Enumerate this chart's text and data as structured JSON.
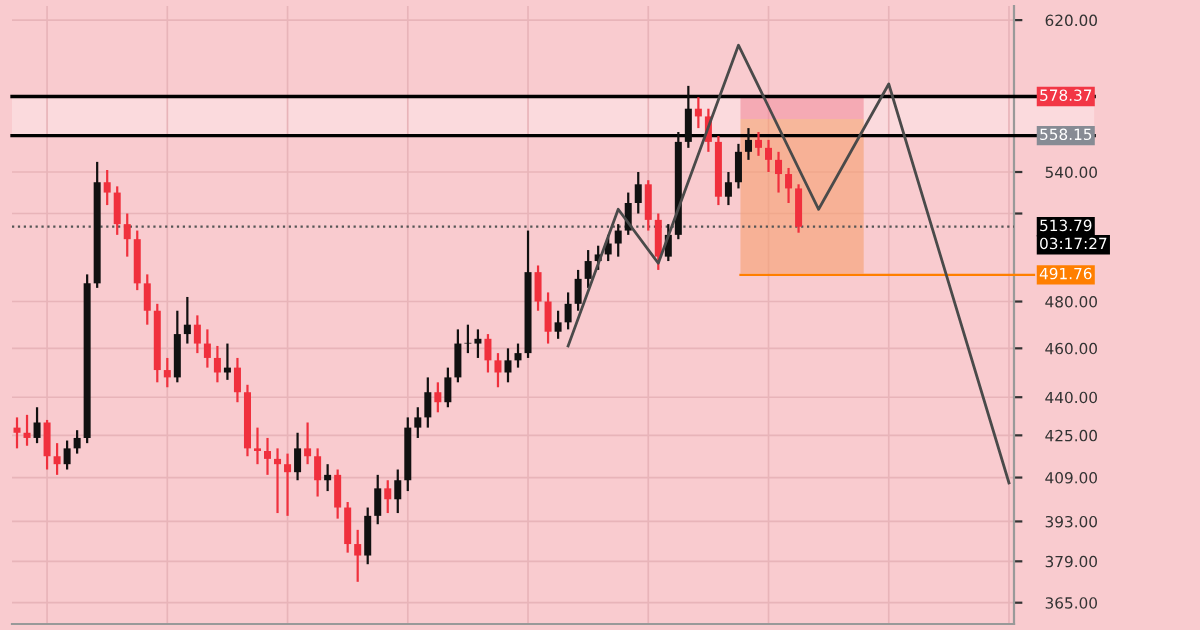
{
  "chart_data": {
    "type": "candlestick",
    "categories": [
      null,
      null,
      null,
      null,
      null,
      null,
      null,
      null,
      null,
      null,
      null,
      null,
      null,
      null,
      null,
      null,
      null,
      null,
      null,
      null,
      null,
      null,
      null,
      null,
      null,
      null,
      null,
      null,
      null,
      null,
      null,
      null,
      null,
      null,
      null,
      null,
      null,
      null,
      null,
      null,
      null,
      null,
      null,
      null,
      null,
      null,
      null,
      null,
      null,
      null,
      null,
      null,
      null,
      null,
      null,
      null,
      null,
      null,
      null,
      null,
      null,
      null,
      null,
      null,
      null,
      null,
      null,
      null,
      null,
      null,
      null,
      null,
      null,
      null,
      null,
      null,
      null,
      null,
      null,
      null,
      null,
      null,
      null,
      null,
      null,
      null,
      null,
      null,
      null,
      null,
      null,
      null,
      null,
      null,
      null,
      null,
      null,
      null,
      null,
      null
    ],
    "ohlc": [
      [
        428,
        432,
        420,
        426
      ],
      [
        426,
        433,
        421,
        424
      ],
      [
        424,
        436,
        422,
        430
      ],
      [
        430,
        431,
        412,
        417
      ],
      [
        417,
        422,
        410,
        414
      ],
      [
        414,
        423,
        412,
        420
      ],
      [
        420,
        427,
        418,
        424
      ],
      [
        424,
        492,
        422,
        488
      ],
      [
        488,
        545,
        486,
        535
      ],
      [
        535,
        541,
        524,
        530
      ],
      [
        530,
        533,
        510,
        515
      ],
      [
        515,
        520,
        500,
        508
      ],
      [
        508,
        512,
        485,
        488
      ],
      [
        488,
        492,
        470,
        476
      ],
      [
        476,
        479,
        446,
        451
      ],
      [
        451,
        456,
        444,
        448
      ],
      [
        448,
        476,
        446,
        466
      ],
      [
        466,
        482,
        462,
        470
      ],
      [
        470,
        474,
        458,
        462
      ],
      [
        462,
        468,
        452,
        456
      ],
      [
        456,
        461,
        446,
        450
      ],
      [
        450,
        462,
        447,
        452
      ],
      [
        452,
        456,
        438,
        442
      ],
      [
        442,
        445,
        417,
        420
      ],
      [
        420,
        428,
        414,
        419
      ],
      [
        419,
        424,
        410,
        416
      ],
      [
        416,
        420,
        396,
        414
      ],
      [
        414,
        418,
        395,
        411
      ],
      [
        411,
        426,
        408,
        420
      ],
      [
        420,
        430,
        414,
        417
      ],
      [
        417,
        420,
        402,
        408
      ],
      [
        408,
        414,
        404,
        410
      ],
      [
        410,
        412,
        394,
        398
      ],
      [
        398,
        400,
        382,
        385
      ],
      [
        385,
        390,
        372,
        381
      ],
      [
        381,
        398,
        378,
        395
      ],
      [
        395,
        410,
        392,
        405
      ],
      [
        405,
        408,
        396,
        401
      ],
      [
        401,
        412,
        396,
        408
      ],
      [
        408,
        432,
        404,
        428
      ],
      [
        428,
        436,
        424,
        432
      ],
      [
        432,
        448,
        428,
        442
      ],
      [
        442,
        446,
        434,
        438
      ],
      [
        438,
        452,
        436,
        448
      ],
      [
        448,
        468,
        446,
        462
      ],
      [
        462,
        470,
        458,
        462
      ],
      [
        462,
        468,
        456,
        464
      ],
      [
        464,
        466,
        450,
        455
      ],
      [
        455,
        458,
        444,
        450
      ],
      [
        450,
        460,
        446,
        455
      ],
      [
        455,
        462,
        452,
        458
      ],
      [
        458,
        512,
        456,
        493
      ],
      [
        493,
        496,
        476,
        480
      ],
      [
        480,
        484,
        462,
        467
      ],
      [
        467,
        476,
        464,
        471
      ],
      [
        471,
        484,
        468,
        479
      ],
      [
        479,
        494,
        476,
        490
      ],
      [
        490,
        503,
        486,
        498
      ],
      [
        498,
        505,
        494,
        501
      ],
      [
        501,
        510,
        498,
        506
      ],
      [
        506,
        515,
        500,
        512
      ],
      [
        512,
        530,
        510,
        525
      ],
      [
        525,
        540,
        520,
        534
      ],
      [
        534,
        536,
        512,
        517
      ],
      [
        517,
        520,
        494,
        500
      ],
      [
        500,
        515,
        498,
        510
      ],
      [
        510,
        560,
        508,
        555
      ],
      [
        555,
        584,
        552,
        572
      ],
      [
        572,
        578,
        562,
        568
      ],
      [
        568,
        572,
        550,
        555
      ],
      [
        555,
        558,
        524,
        528
      ],
      [
        528,
        540,
        524,
        535
      ],
      [
        535,
        554,
        532,
        550
      ],
      [
        550,
        562,
        546,
        556
      ],
      [
        556,
        560,
        548,
        552
      ],
      [
        552,
        556,
        540,
        546
      ],
      [
        546,
        550,
        530,
        539
      ],
      [
        539,
        542,
        525,
        532
      ],
      [
        532,
        534,
        511,
        513.79
      ],
      null,
      null,
      null,
      null,
      null,
      null,
      null,
      null,
      null,
      null,
      null,
      null,
      null,
      null,
      null,
      null,
      null,
      null,
      null,
      null,
      null
    ],
    "series": [
      {
        "type": "line",
        "color": "#4a4a4a",
        "values": [
          null,
          null,
          null,
          null,
          null,
          null,
          null,
          null,
          null,
          null,
          null,
          null,
          null,
          null,
          null,
          null,
          null,
          null,
          null,
          null,
          null,
          null,
          null,
          null,
          null,
          null,
          null,
          null,
          null,
          null,
          null,
          null,
          null,
          null,
          null,
          null,
          null,
          null,
          null,
          null,
          null,
          null,
          null,
          null,
          null,
          null,
          null,
          null,
          null,
          null,
          null,
          null,
          null,
          null,
          null,
          461,
          null,
          null,
          null,
          null,
          522,
          null,
          null,
          null,
          497,
          null,
          null,
          null,
          null,
          null,
          null,
          null,
          606,
          null,
          null,
          null,
          null,
          null,
          null,
          null,
          522,
          null,
          null,
          null,
          null,
          null,
          null,
          585,
          null,
          null,
          null,
          null,
          null,
          null,
          null,
          null,
          null,
          null,
          null,
          407
        ]
      }
    ],
    "log": "y",
    "ylim": [
      358,
      628
    ],
    "yticks": [
      {
        "value": 620,
        "label": "620.00"
      },
      {
        "value": 540,
        "label": "540.00"
      },
      {
        "value": 520,
        "label": null
      },
      {
        "value": 480,
        "label": "480.00"
      },
      {
        "value": 460,
        "label": "460.00"
      },
      {
        "value": 440,
        "label": "440.00"
      },
      {
        "value": 425,
        "label": "425.00"
      },
      {
        "value": 409,
        "label": "409.00"
      },
      {
        "value": 393,
        "label": "393.00"
      },
      {
        "value": 379,
        "label": "379.00"
      },
      {
        "value": 365,
        "label": "365.00"
      }
    ],
    "bands": [
      {
        "axis": "y",
        "from": 558.15,
        "to": 578.37,
        "color": "#fbdadd"
      }
    ],
    "ref_lines": [
      {
        "axis": "y",
        "value": 578.37,
        "label": "578.37",
        "color": "#000000"
      },
      {
        "axis": "y",
        "value": 558.15,
        "label": "558.15",
        "color": "#000000"
      },
      {
        "axis": "y",
        "value": 513.79,
        "label": "513.79",
        "color": "#555555",
        "line_style": "dotted"
      },
      {
        "axis": "y",
        "value": 491.76,
        "label": "491.76",
        "color": "#ff7f00"
      }
    ],
    "annotations": [
      "03:17:27"
    ],
    "grid": true,
    "tick_labels": "y"
  }
}
